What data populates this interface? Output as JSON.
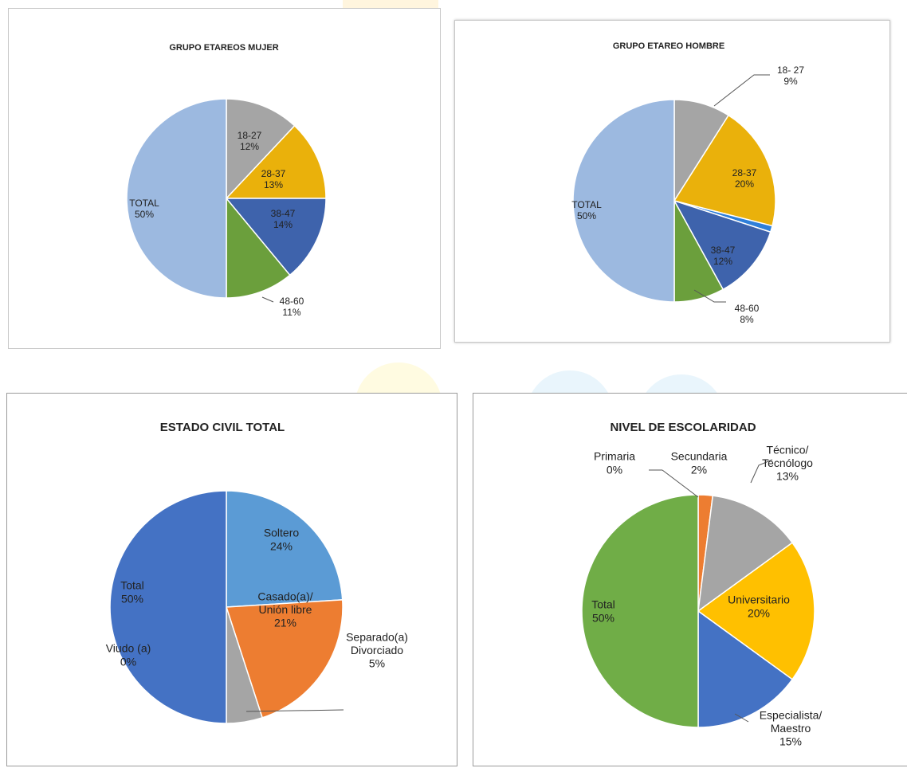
{
  "theme": {
    "gray": "#A5A5A5",
    "gold": "#EAB10B",
    "darkblue": "#3E63AC",
    "green": "#6B9F3C",
    "lightblue": "#9CB9E0",
    "blue_total": "#4472C4",
    "blue_soltero": "#5B9BD5",
    "orange": "#ED7D31",
    "green_total": "#70AD47",
    "gold2": "#FFC000",
    "blue_esp": "#4472C4"
  },
  "chart_data": [
    {
      "type": "pie",
      "title": "GRUPO ETAREOS MUJER",
      "slices": [
        {
          "label": "18-27",
          "value": 12,
          "pct": "12%",
          "color": "#A5A5A5"
        },
        {
          "label": "28-37",
          "value": 13,
          "pct": "13%",
          "color": "#EAB10B"
        },
        {
          "label": "38-47",
          "value": 14,
          "pct": "14%",
          "color": "#3E63AC"
        },
        {
          "label": "48-60",
          "value": 11,
          "pct": "11%",
          "color": "#6B9F3C"
        },
        {
          "label": "TOTAL",
          "value": 50,
          "pct": "50%",
          "color": "#9CB9E0"
        }
      ]
    },
    {
      "type": "pie",
      "title": "GRUPO ETAREO HOMBRE",
      "slices": [
        {
          "label": "18- 27",
          "value": 9,
          "pct": "9%",
          "color": "#A5A5A5"
        },
        {
          "label": "28-37",
          "value": 20,
          "pct": "20%",
          "color": "#EAB10B"
        },
        {
          "label": "",
          "value": 1,
          "pct": "",
          "color": "#2F7FD9"
        },
        {
          "label": "38-47",
          "value": 12,
          "pct": "12%",
          "color": "#3E63AC"
        },
        {
          "label": "48-60",
          "value": 8,
          "pct": "8%",
          "color": "#6B9F3C"
        },
        {
          "label": "TOTAL",
          "value": 50,
          "pct": "50%",
          "color": "#9CB9E0"
        }
      ]
    },
    {
      "type": "pie",
      "title": "ESTADO CIVIL TOTAL",
      "slices": [
        {
          "label": "Soltero",
          "value": 24,
          "pct": "24%",
          "color": "#5B9BD5"
        },
        {
          "label": "Casado (a)/ Unión libre",
          "value": 21,
          "pct": "21%",
          "color": "#ED7D31"
        },
        {
          "label": "Separado(a) Divorciado",
          "value": 5,
          "pct": "5%",
          "color": "#A5A5A5"
        },
        {
          "label": "Viudo (a)",
          "value": 0,
          "pct": "0%",
          "color": "#FFC000"
        },
        {
          "label": "Total",
          "value": 50,
          "pct": "50%",
          "color": "#4472C4"
        }
      ]
    },
    {
      "type": "pie",
      "title": "NIVEL DE ESCOLARIDAD",
      "slices": [
        {
          "label": "Primaria",
          "value": 0,
          "pct": "0%",
          "color": "#5B9BD5"
        },
        {
          "label": "Secundaria",
          "value": 2,
          "pct": "2%",
          "color": "#ED7D31"
        },
        {
          "label": "Técnico/ Tecnólogo",
          "value": 13,
          "pct": "13%",
          "color": "#A5A5A5"
        },
        {
          "label": "Universitario",
          "value": 20,
          "pct": "20%",
          "color": "#FFC000"
        },
        {
          "label": "Especialista/ Maestro",
          "value": 15,
          "pct": "15%",
          "color": "#4472C4"
        },
        {
          "label": "Total",
          "value": 50,
          "pct": "50%",
          "color": "#70AD47"
        }
      ]
    }
  ]
}
